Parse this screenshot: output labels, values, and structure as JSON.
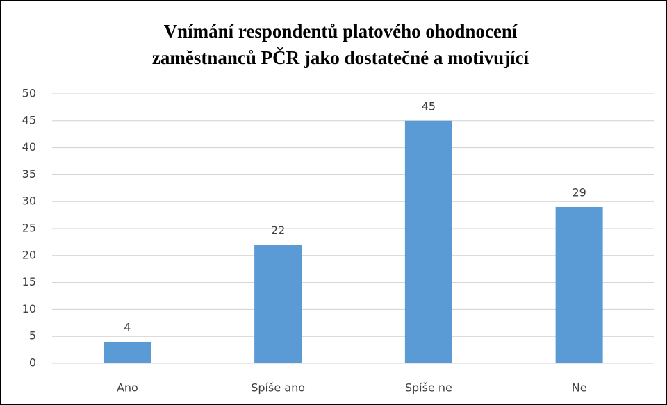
{
  "chart_data": {
    "type": "bar",
    "title": [
      "Vnímání respondentů platového ohodnocení",
      "zaměstnanců PČR jako dostatečné a motivující"
    ],
    "categories": [
      "Ano",
      "Spíše ano",
      "Spíše ne",
      "Ne"
    ],
    "values": [
      4,
      22,
      45,
      29
    ],
    "color": "#5b9bd5",
    "ylim": [
      0,
      50
    ],
    "yticks": [
      0,
      5,
      10,
      15,
      20,
      25,
      30,
      35,
      40,
      45,
      50
    ],
    "grid": true
  }
}
